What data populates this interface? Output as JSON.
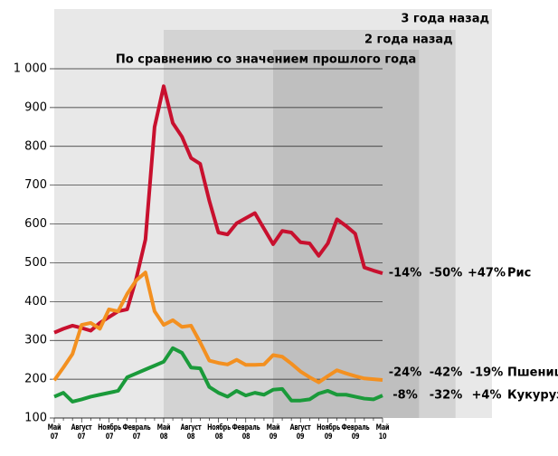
{
  "chart_data": {
    "type": "line",
    "regions": [
      {
        "label": "3 года назад",
        "from": 0,
        "to": 48,
        "color": "#e8e8e8"
      },
      {
        "label": "2 года назад",
        "from": 12,
        "to": 44,
        "color": "#d3d3d3"
      },
      {
        "label": "По сравнению со значением прошлого года",
        "from": 24,
        "to": 40,
        "color": "#bfbfbf"
      }
    ],
    "categories": [
      "Май\n07",
      null,
      null,
      "Август\n07",
      null,
      null,
      "Ноябрь\n07",
      null,
      null,
      "Февраль\n07",
      null,
      null,
      "Май\n08",
      null,
      null,
      "Август\n08",
      null,
      null,
      "Ноябрь\n08",
      null,
      null,
      "Февраль\n08",
      null,
      null,
      "Май\n09",
      null,
      null,
      "Август\n09",
      null,
      null,
      "Ноябрь\n09",
      null,
      null,
      "Февраль\n09",
      null,
      null,
      "Май\n10"
    ],
    "series": [
      {
        "name": "Рис",
        "color": "#c8102e",
        "changes": [
          "-14%",
          "-50%",
          "+47%"
        ],
        "values": [
          320,
          330,
          338,
          332,
          325,
          345,
          360,
          375,
          380,
          460,
          560,
          850,
          955,
          860,
          825,
          770,
          755,
          660,
          578,
          573,
          602,
          615,
          628,
          588,
          548,
          582,
          578,
          553,
          550,
          518,
          550,
          612,
          595,
          575,
          488,
          480,
          473
        ]
      },
      {
        "name": "Пшеница",
        "color": "#f39020",
        "changes": [
          "-24%",
          "-42%",
          "-19%"
        ],
        "values": [
          197,
          230,
          265,
          340,
          345,
          330,
          380,
          375,
          420,
          455,
          475,
          375,
          340,
          352,
          335,
          338,
          295,
          248,
          242,
          238,
          250,
          237,
          237,
          238,
          262,
          258,
          240,
          220,
          205,
          192,
          208,
          223,
          215,
          208,
          202,
          200,
          198
        ]
      },
      {
        "name": "Кукуруза",
        "color": "#1a9a3a",
        "changes": [
          "-8%",
          "-32%",
          "+4%"
        ],
        "values": [
          155,
          165,
          142,
          148,
          155,
          160,
          165,
          170,
          205,
          215,
          225,
          235,
          245,
          280,
          268,
          230,
          228,
          180,
          165,
          155,
          170,
          158,
          165,
          160,
          173,
          175,
          145,
          145,
          148,
          163,
          170,
          160,
          160,
          155,
          150,
          148,
          158
        ]
      }
    ],
    "ylim": [
      100,
      1000
    ],
    "yticks": [
      100,
      200,
      300,
      400,
      500,
      600,
      700,
      800,
      900,
      {
        "value": 1000,
        "label": "1 000"
      }
    ],
    "grid": true
  }
}
